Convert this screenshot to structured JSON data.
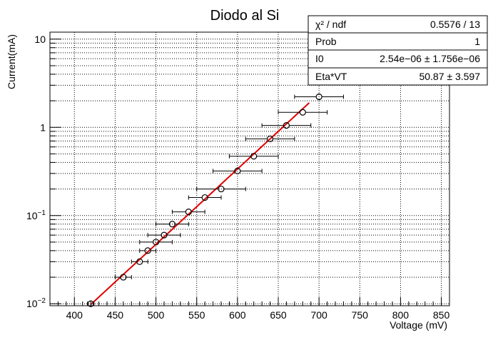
{
  "chart_data": {
    "type": "scatter",
    "title": "Diodo al Si",
    "xlabel": "Voltage (mV)",
    "ylabel": "Current(mA)",
    "xlim": [
      370,
      860
    ],
    "ylim": [
      0.0095,
      12
    ],
    "yscale": "log",
    "grid": true,
    "x_ticks": [
      "400",
      "450",
      "500",
      "550",
      "600",
      "650",
      "700",
      "750",
      "800",
      "850"
    ],
    "y_ticks": [
      {
        "base": "10",
        "exp": "−2"
      },
      {
        "base": "10",
        "exp": "−1"
      },
      {
        "base": "1",
        "exp": ""
      },
      {
        "base": "10",
        "exp": ""
      }
    ],
    "points": [
      {
        "x": 420,
        "y": 0.01,
        "xerr": 4
      },
      {
        "x": 460,
        "y": 0.02,
        "xerr": 10
      },
      {
        "x": 480,
        "y": 0.03,
        "xerr": 10
      },
      {
        "x": 490,
        "y": 0.04,
        "xerr": 10
      },
      {
        "x": 500,
        "y": 0.05,
        "xerr": 20
      },
      {
        "x": 510,
        "y": 0.06,
        "xerr": 20
      },
      {
        "x": 520,
        "y": 0.08,
        "xerr": 20
      },
      {
        "x": 540,
        "y": 0.11,
        "xerr": 20
      },
      {
        "x": 560,
        "y": 0.16,
        "xerr": 20
      },
      {
        "x": 580,
        "y": 0.2,
        "xerr": 30
      },
      {
        "x": 600,
        "y": 0.32,
        "xerr": 30
      },
      {
        "x": 620,
        "y": 0.47,
        "xerr": 30
      },
      {
        "x": 640,
        "y": 0.74,
        "xerr": 30
      },
      {
        "x": 660,
        "y": 1.05,
        "xerr": 30
      },
      {
        "x": 680,
        "y": 1.48,
        "xerr": 30
      },
      {
        "x": 700,
        "y": 2.22,
        "xerr": 30
      }
    ],
    "fit": {
      "x_range": [
        420,
        688
      ],
      "I0": 2.54e-06,
      "EtaVT": 50.87,
      "color": "#e00000"
    },
    "marker_color": "#000000"
  },
  "stats": {
    "rows": [
      {
        "label": "χ² / ndf",
        "value": "0.5576 / 13"
      },
      {
        "label": "Prob",
        "value": "1"
      },
      {
        "label": "I0",
        "value": "2.54e−06 ± 1.756e−06"
      },
      {
        "label": "Eta*VT",
        "value": "50.87 ± 3.597"
      }
    ]
  }
}
